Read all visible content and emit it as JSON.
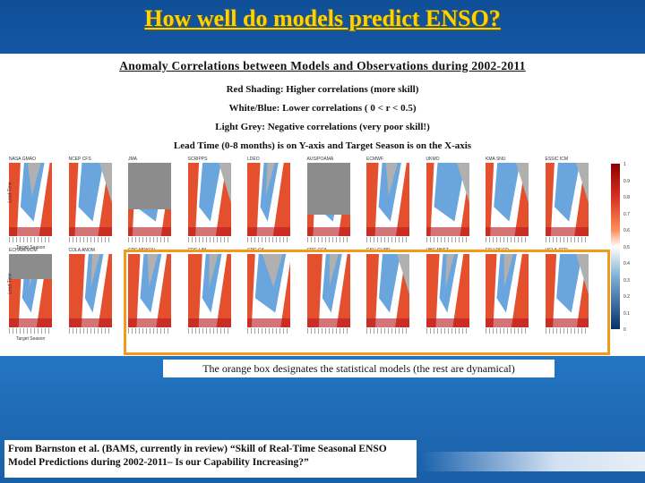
{
  "slide": {
    "title": "How well do models predict ENSO?",
    "subtitle": "Anomaly Correlations between Models and Observations during 2002-2011",
    "legend_lines": [
      "Red Shading: Higher correlations (more skill)",
      "White/Blue: Lower correlations ( 0 < r < 0.5)",
      "Light Grey: Negative correlations (very poor skill!)",
      "Lead Time (0-8 months) is on Y-axis and Target Season is on the X-axis"
    ],
    "note": "The orange box designates the statistical models (the rest are dynamical)",
    "citation": "From Barnston et al. (BAMS, currently in review) “Skill of Real-Time Seasonal ENSO Model Predictions during 2002-2011– Is our Capability Increasing?”"
  },
  "figure": {
    "ylabel": "Lead Time",
    "xlabel": "Target Season",
    "colorbar_ticks": [
      "1",
      "0.9",
      "0.8",
      "0.7",
      "0.6",
      "0.5",
      "0.4",
      "0.3",
      "0.2",
      "0.1",
      "0"
    ],
    "row1_models": [
      "NASA GMAO",
      "NCEP CFS",
      "JMA",
      "SCRIPPS",
      "LDEO",
      "AUS/POAMA",
      "ECMWF",
      "UKMO",
      "KMA SNU",
      "ESSIC ICM"
    ],
    "row2_models": [
      "ECHAM/MOM",
      "COLA ANOM",
      "CPC MRKOV",
      "CDC LIM",
      "CPC CA",
      "CPC CCA",
      "CSU CLIPR",
      "UBC NNET",
      "FSU REGR",
      "UCLA-TCD"
    ],
    "statistical_models_highlight": "orange"
  },
  "colors": {
    "title": "#ffd200",
    "highlight_box": "#f29a1c",
    "high_corr": "#d7301f",
    "low_corr": "#4a90d9",
    "negative": "#b0b0b0"
  }
}
